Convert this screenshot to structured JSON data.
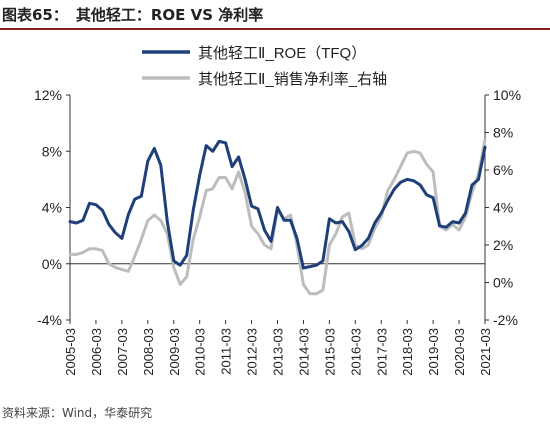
{
  "header": {
    "figure_no": "图表65：",
    "title": "其他轻工：ROE VS 净利率"
  },
  "source": "资料来源：Wind，华泰研究",
  "colors": {
    "roe": "#1f3f78",
    "margin": "#bdbdbd",
    "title_rule": "#8b1a1a"
  },
  "chart_data": {
    "type": "line",
    "legend_placement": "top-center",
    "grid": false,
    "x_ticks": [
      "2005-03",
      "2006-03",
      "2007-03",
      "2008-03",
      "2009-03",
      "2010-03",
      "2011-03",
      "2012-03",
      "2013-03",
      "2014-03",
      "2015-03",
      "2016-03",
      "2017-03",
      "2018-03",
      "2019-03",
      "2020-03",
      "2021-03"
    ],
    "x_range": [
      2005.0,
      2021.0
    ],
    "left_axis": {
      "ylim": [
        -4,
        12
      ],
      "ticks": [
        "-4%",
        "0%",
        "4%",
        "8%",
        "12%"
      ],
      "tick_values": [
        -4,
        0,
        4,
        8,
        12
      ]
    },
    "right_axis": {
      "ylim": [
        -2,
        10
      ],
      "ticks": [
        "-2%",
        "0%",
        "2%",
        "4%",
        "6%",
        "8%",
        "10%"
      ],
      "tick_values": [
        -2,
        0,
        2,
        4,
        6,
        8,
        10
      ]
    },
    "series": [
      {
        "name": "其他轻工Ⅱ_ROE（TFQ）",
        "axis": "left",
        "x": [
          2005.0,
          2005.25,
          2005.5,
          2005.75,
          2006.0,
          2006.25,
          2006.5,
          2006.75,
          2007.0,
          2007.25,
          2007.5,
          2007.75,
          2008.0,
          2008.25,
          2008.5,
          2008.75,
          2009.0,
          2009.25,
          2009.5,
          2009.75,
          2010.0,
          2010.25,
          2010.5,
          2010.75,
          2011.0,
          2011.25,
          2011.5,
          2011.75,
          2012.0,
          2012.25,
          2012.5,
          2012.75,
          2013.0,
          2013.25,
          2013.5,
          2013.75,
          2014.0,
          2014.25,
          2014.5,
          2014.75,
          2015.0,
          2015.25,
          2015.5,
          2015.75,
          2016.0,
          2016.25,
          2016.5,
          2016.75,
          2017.0,
          2017.25,
          2017.5,
          2017.75,
          2018.0,
          2018.25,
          2018.5,
          2018.75,
          2019.0,
          2019.25,
          2019.5,
          2019.75,
          2020.0,
          2020.25,
          2020.5,
          2020.75,
          2021.0
        ],
        "values": [
          3.0,
          2.9,
          3.1,
          4.3,
          4.2,
          3.8,
          2.8,
          2.2,
          1.8,
          3.5,
          4.6,
          4.8,
          7.3,
          8.2,
          7.0,
          3.0,
          0.2,
          -0.1,
          0.6,
          3.8,
          6.3,
          8.4,
          8.0,
          8.7,
          8.6,
          6.9,
          7.6,
          6.0,
          4.1,
          3.9,
          2.4,
          1.6,
          4.0,
          3.1,
          3.1,
          1.8,
          -0.3,
          -0.2,
          -0.1,
          0.2,
          3.2,
          2.9,
          3.0,
          2.3,
          1.0,
          1.3,
          1.8,
          2.9,
          3.6,
          4.5,
          5.3,
          5.8,
          6.0,
          5.9,
          5.6,
          4.9,
          4.7,
          2.7,
          2.6,
          3.0,
          2.9,
          3.6,
          5.6,
          6.0,
          8.3
        ]
      },
      {
        "name": "其他轻工Ⅱ_销售净利率_右轴",
        "axis": "right",
        "x": [
          2005.0,
          2005.25,
          2005.5,
          2005.75,
          2006.0,
          2006.25,
          2006.5,
          2006.75,
          2007.0,
          2007.25,
          2007.5,
          2007.75,
          2008.0,
          2008.25,
          2008.5,
          2008.75,
          2009.0,
          2009.25,
          2009.5,
          2009.75,
          2010.0,
          2010.25,
          2010.5,
          2010.75,
          2011.0,
          2011.25,
          2011.5,
          2011.75,
          2012.0,
          2012.25,
          2012.5,
          2012.75,
          2013.0,
          2013.25,
          2013.5,
          2013.75,
          2014.0,
          2014.25,
          2014.5,
          2014.75,
          2015.0,
          2015.25,
          2015.5,
          2015.75,
          2016.0,
          2016.25,
          2016.5,
          2016.75,
          2017.0,
          2017.25,
          2017.5,
          2017.75,
          2018.0,
          2018.25,
          2018.5,
          2018.75,
          2019.0,
          2019.25,
          2019.5,
          2019.75,
          2020.0,
          2020.25,
          2020.5,
          2020.75,
          2021.0
        ],
        "values": [
          1.5,
          1.5,
          1.6,
          1.8,
          1.8,
          1.7,
          1.0,
          0.8,
          0.7,
          0.6,
          1.4,
          2.3,
          3.3,
          3.6,
          3.3,
          2.6,
          0.8,
          -0.1,
          0.3,
          2.3,
          3.5,
          4.9,
          5.0,
          5.6,
          5.6,
          5.0,
          5.9,
          4.8,
          3.0,
          2.6,
          2.0,
          1.8,
          3.9,
          3.4,
          3.6,
          2.0,
          -0.1,
          -0.6,
          -0.6,
          -0.4,
          2.0,
          2.6,
          3.5,
          3.7,
          2.0,
          1.8,
          2.0,
          2.9,
          3.5,
          4.9,
          5.5,
          6.2,
          6.9,
          7.0,
          6.9,
          6.3,
          5.9,
          3.0,
          2.8,
          3.1,
          2.8,
          3.5,
          4.8,
          5.8,
          7.6
        ]
      }
    ]
  }
}
